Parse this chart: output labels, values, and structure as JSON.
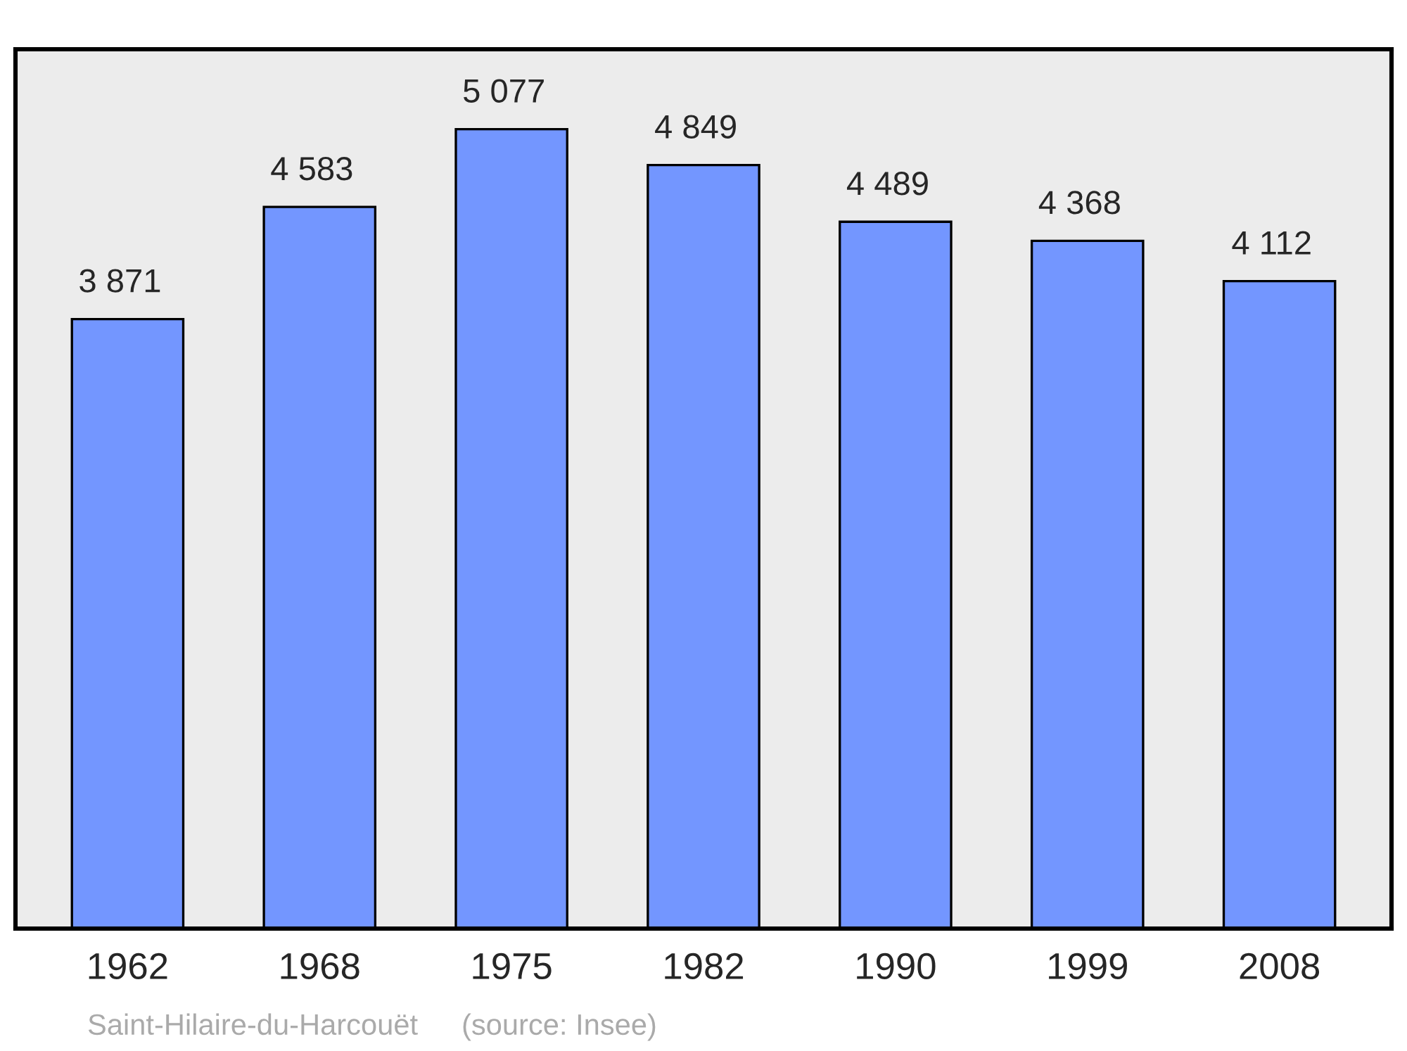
{
  "chart_data": {
    "type": "bar",
    "categories": [
      "1962",
      "1968",
      "1975",
      "1982",
      "1990",
      "1999",
      "2008"
    ],
    "values": [
      3871,
      4583,
      5077,
      4849,
      4489,
      4368,
      4112
    ],
    "value_labels": [
      "3 871",
      "4 583",
      "5 077",
      "4 849",
      "4 489",
      "4 368",
      "4 112"
    ],
    "color": "#7396ff",
    "annotations": [
      "Saint-Hilaire-du-Harcouët",
      "(source: Insee)"
    ],
    "grid": false,
    "legend": false,
    "tick_labels": "x"
  }
}
